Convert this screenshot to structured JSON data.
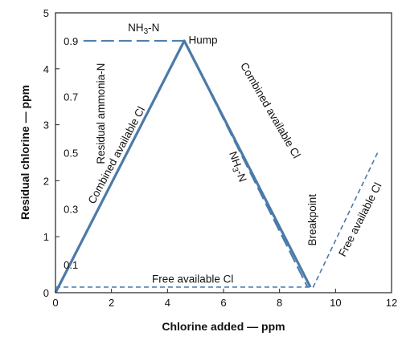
{
  "chart_data": {
    "type": "line",
    "xlabel": "Chlorine added — ppm",
    "ylabel": "Residual chlorine — ppm",
    "xlim": [
      0,
      12
    ],
    "ylim": [
      0,
      5
    ],
    "x_ticks": [
      0,
      2,
      4,
      6,
      8,
      10,
      12
    ],
    "y_ticks": [
      0,
      1,
      2,
      3,
      4,
      5
    ],
    "ammonia_scale_ticks": [
      {
        "label": "0.1",
        "y": 0.5
      },
      {
        "label": "0.3",
        "y": 1.5
      },
      {
        "label": "0.5",
        "y": 2.5
      },
      {
        "label": "0.7",
        "y": 3.5
      },
      {
        "label": "0.9",
        "y": 4.5
      }
    ],
    "series": [
      {
        "style": "solid-thick",
        "color": "#4a7aa8",
        "points": [
          [
            0,
            0
          ],
          [
            4.6,
            4.5
          ],
          [
            9.1,
            0.1
          ]
        ]
      },
      {
        "style": "long-dash",
        "color": "#4a7aa8",
        "points": [
          [
            1,
            4.5
          ],
          [
            4.6,
            4.5
          ],
          [
            9.0,
            0.1
          ]
        ]
      },
      {
        "style": "short-dash",
        "color": "#4a7aa8",
        "points": [
          [
            0,
            0.1
          ],
          [
            9.2,
            0.1
          ],
          [
            11.5,
            2.5
          ]
        ]
      }
    ],
    "annotations": [
      {
        "text": "Residual ammonia-N",
        "x": 1.65,
        "y": 3.2,
        "rotate": -90
      },
      {
        "text": "Combined available Cl",
        "x": 2.2,
        "y": 2.45,
        "rotate": -62
      },
      {
        "text": "Hump",
        "x": 4.75,
        "y": 4.5,
        "rotate": 0
      },
      {
        "text": "Combined available Cl",
        "x": 7.65,
        "y": 3.25,
        "rotate": 60
      },
      {
        "text": "Breakpoint",
        "x": 9.2,
        "y": 1.3,
        "rotate": -90
      },
      {
        "text": "Free available Cl",
        "x": 4.9,
        "y": 0.23,
        "rotate": 0
      },
      {
        "text": "Free available Cl",
        "x": 10.9,
        "y": 1.3,
        "rotate": -63
      }
    ],
    "nh3_labels": [
      {
        "x": 3.15,
        "y": 4.73,
        "rotate": 0
      },
      {
        "x": 6.5,
        "y": 2.25,
        "rotate": 70
      }
    ]
  }
}
